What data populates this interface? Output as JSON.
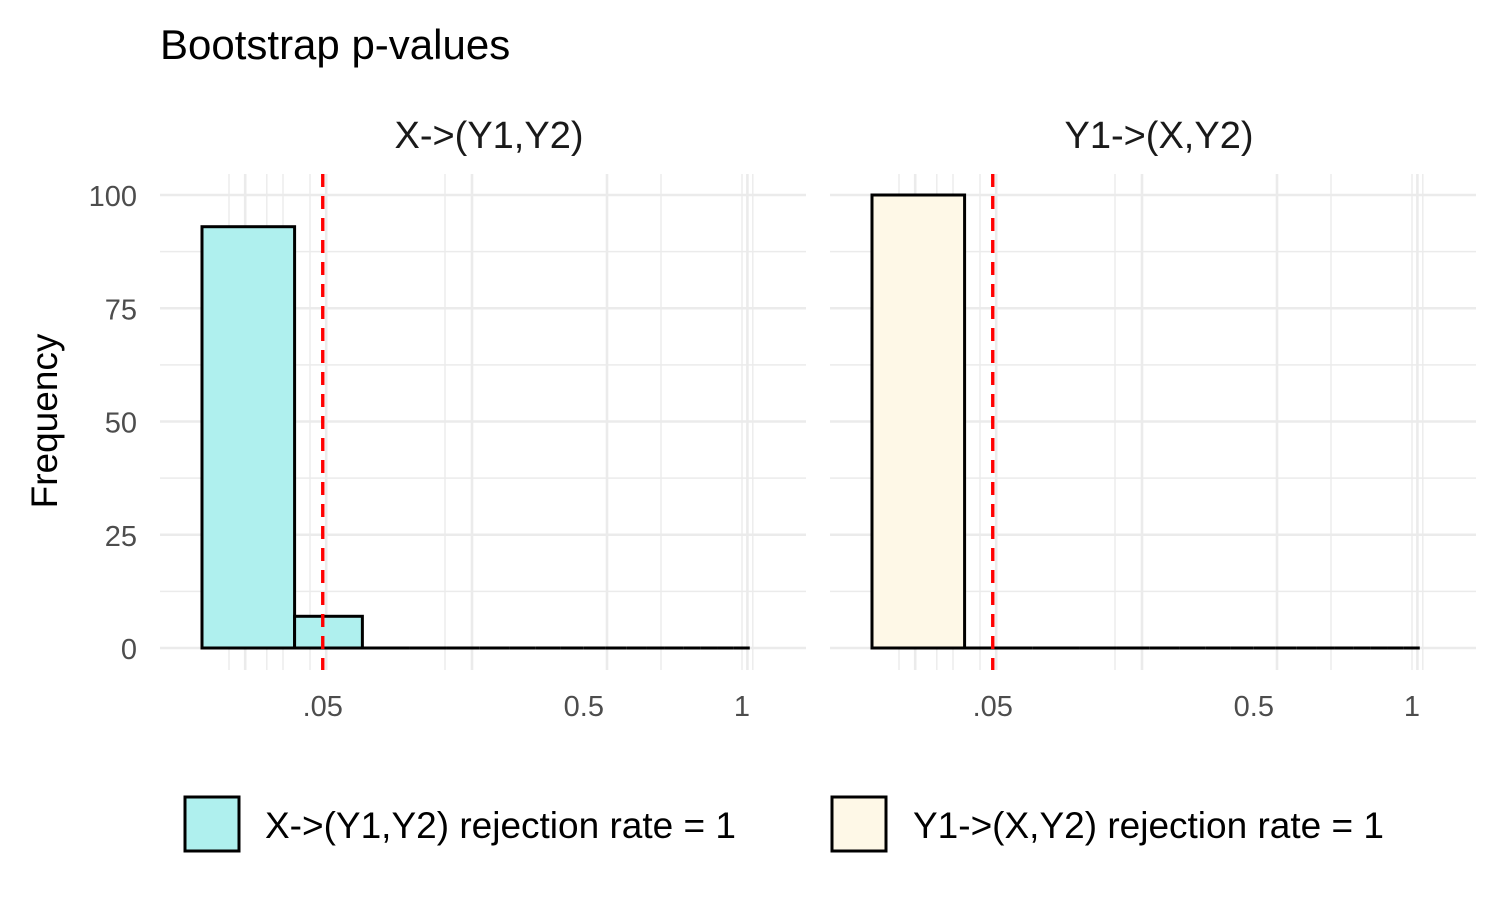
{
  "chart_data": {
    "type": "bar",
    "title": "Bootstrap p-values",
    "ylabel": "Frequency",
    "xlabel": "",
    "ylim": [
      0,
      100
    ],
    "yticks": [
      0,
      25,
      50,
      75,
      100
    ],
    "yticklabels": [
      "0",
      "25",
      "50",
      "75",
      "100"
    ],
    "xlim": [
      -0.04,
      1.04
    ],
    "xticks": [
      0.05,
      0.5,
      1
    ],
    "xticklabels": [
      ".05",
      "0.5",
      "1"
    ],
    "grid": true,
    "threshold": {
      "value": 0.05,
      "color": "#ff0000",
      "style": "dashed"
    },
    "bin_width": 0.0588,
    "bin_start": -0.0294,
    "legend_position": "bottom",
    "panels": [
      {
        "strip": "X->(Y1,Y2)",
        "fill": "#aff0ee",
        "legend_label": "X->(Y1,Y2) rejection rate =  1",
        "values": [
          93,
          7,
          0,
          0,
          0,
          0,
          0,
          0,
          0,
          0,
          0,
          0,
          0,
          0,
          0,
          0,
          0,
          0
        ]
      },
      {
        "strip": "Y1->(X,Y2)",
        "fill": "#fef8e7",
        "legend_label": "Y1->(X,Y2) rejection rate =  1",
        "values": [
          100,
          0,
          0,
          0,
          0,
          0,
          0,
          0,
          0,
          0,
          0,
          0,
          0,
          0,
          0,
          0,
          0,
          0
        ]
      }
    ]
  }
}
